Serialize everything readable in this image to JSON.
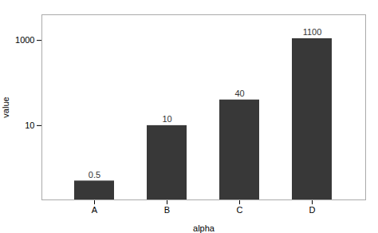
{
  "chart_data": {
    "type": "bar",
    "categories": [
      "A",
      "B",
      "C",
      "D"
    ],
    "values": [
      0.5,
      10,
      40,
      1100
    ],
    "color": "#383838",
    "xlabel": "alpha",
    "ylabel": "value",
    "log": "y",
    "ylim": [
      0.18,
      4000
    ],
    "yticks": [
      10,
      1000
    ],
    "grid": false,
    "data_labels": true
  }
}
